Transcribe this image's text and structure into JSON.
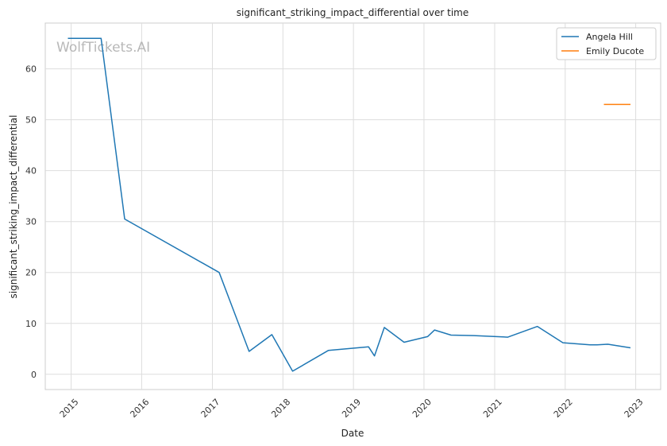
{
  "chart_data": {
    "type": "line",
    "title": "significant_striking_impact_differential over time",
    "xlabel": "Date",
    "ylabel": "significant_striking_impact_differential",
    "watermark": "WolfTickets.AI",
    "xlim": [
      "2014-08-20",
      "2023-05-10"
    ],
    "ylim": [
      -3,
      69
    ],
    "x_ticks": [
      "2015",
      "2016",
      "2017",
      "2018",
      "2019",
      "2020",
      "2021",
      "2022",
      "2023"
    ],
    "y_ticks": [
      0,
      10,
      20,
      30,
      40,
      50,
      60
    ],
    "grid": true,
    "legend_position": "top-right",
    "series": [
      {
        "name": "Angela Hill",
        "color": "#1f77b4",
        "points": [
          [
            "2014-12-15",
            66.0
          ],
          [
            "2015-06-05",
            66.0
          ],
          [
            "2015-10-05",
            30.5
          ],
          [
            "2017-02-05",
            20.0
          ],
          [
            "2017-07-10",
            4.5
          ],
          [
            "2017-11-05",
            7.8
          ],
          [
            "2018-02-20",
            0.6
          ],
          [
            "2018-08-25",
            4.7
          ],
          [
            "2019-03-20",
            5.4
          ],
          [
            "2019-04-20",
            3.6
          ],
          [
            "2019-06-10",
            9.2
          ],
          [
            "2019-09-20",
            6.3
          ],
          [
            "2020-01-20",
            7.4
          ],
          [
            "2020-02-25",
            8.7
          ],
          [
            "2020-05-20",
            7.7
          ],
          [
            "2020-09-15",
            7.6
          ],
          [
            "2021-03-10",
            7.3
          ],
          [
            "2021-08-10",
            9.4
          ],
          [
            "2021-12-20",
            6.2
          ],
          [
            "2022-05-10",
            5.8
          ],
          [
            "2022-06-15",
            5.8
          ],
          [
            "2022-08-10",
            5.9
          ],
          [
            "2022-12-05",
            5.2
          ]
        ]
      },
      {
        "name": "Emily Ducote",
        "color": "#ff7f0e",
        "points": [
          [
            "2022-07-20",
            53.0
          ],
          [
            "2022-12-05",
            53.0
          ]
        ]
      }
    ]
  }
}
